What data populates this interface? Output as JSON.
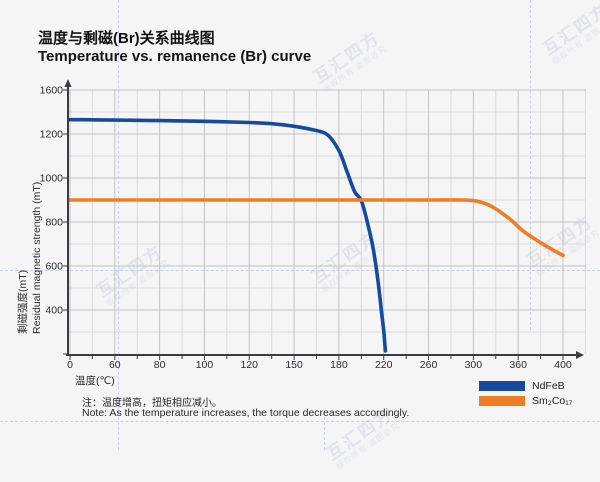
{
  "header": {
    "title_zh": "温度与剩磁(Br)关系曲线图",
    "title_en": "Temperature vs. remanence (Br) curve"
  },
  "watermark": {
    "text": "互汇四方",
    "subtext": "版权所有 盗图必究"
  },
  "notes": {
    "zh": "注：温度增高，扭矩相应减小。",
    "en": "Note: As the temperature increases, the torque decreases accordingly."
  },
  "chart_data": {
    "type": "line",
    "title_zh": "温度与剩磁(Br)关系曲线图",
    "title_en": "Temperature vs. remanence (Br) curve",
    "xlabel": "温度(℃)",
    "ylabel_zh": "剩磁强度(mT)",
    "ylabel_en": "Residual magnetic strength (mT)",
    "x_ticks": [
      0,
      60,
      80,
      100,
      120,
      150,
      180,
      220,
      260,
      300,
      360,
      400
    ],
    "y_ticks": [
      1600,
      1200,
      1000,
      800,
      600,
      400,
      0
    ],
    "origin_label": "0",
    "ylim": [
      0,
      1600
    ],
    "axes_note": "tick labels are equally spaced despite non-uniform values",
    "grid": true,
    "legend_position": "bottom-right",
    "colors": {
      "axis": "#3b3b40",
      "grid_major": "#c4c4c7",
      "grid_minor": "#dbdbde",
      "ndfeb": "#17499c",
      "sm2co17": "#ee7e24"
    },
    "series": [
      {
        "label": "NdFeB",
        "color": "#17499c",
        "points": [
          [
            0,
            1330
          ],
          [
            30,
            1329
          ],
          [
            60,
            1326
          ],
          [
            80,
            1322
          ],
          [
            100,
            1315
          ],
          [
            120,
            1305
          ],
          [
            135,
            1294
          ],
          [
            150,
            1270
          ],
          [
            162,
            1240
          ],
          [
            172,
            1198
          ],
          [
            180,
            1125
          ],
          [
            187,
            1032
          ],
          [
            194,
            938
          ],
          [
            200,
            897
          ],
          [
            206,
            786
          ],
          [
            211,
            668
          ],
          [
            215,
            528
          ],
          [
            218,
            382
          ],
          [
            220,
            212
          ],
          [
            221.5,
            28
          ]
        ]
      },
      {
        "label": "Sm₂Co₁₇",
        "color": "#ee7e24",
        "points": [
          [
            0,
            900
          ],
          [
            60,
            900
          ],
          [
            120,
            900
          ],
          [
            200,
            900
          ],
          [
            260,
            900
          ],
          [
            290,
            900
          ],
          [
            305,
            895
          ],
          [
            320,
            878
          ],
          [
            335,
            848
          ],
          [
            350,
            810
          ],
          [
            365,
            757
          ],
          [
            380,
            706
          ],
          [
            390,
            676
          ],
          [
            400,
            648
          ]
        ]
      }
    ]
  }
}
